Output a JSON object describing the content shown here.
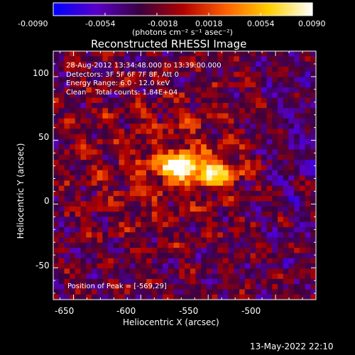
{
  "chart_data": {
    "type": "heatmap",
    "title": "Reconstructed RHESSI Image",
    "xlabel": "Heliocentric X (arcsec)",
    "ylabel": "Heliocentric Y (arcsec)",
    "xlim": [
      -665,
      -470
    ],
    "ylim": [
      -75,
      120
    ],
    "x_ticks": [
      -650,
      -600,
      -550,
      -500
    ],
    "y_ticks": [
      -50,
      0,
      50,
      100
    ],
    "colorbar": {
      "min": -0.009,
      "max": 0.009,
      "ticks": [
        "-0.0090",
        "-0.0054",
        "-0.0018",
        "0.0018",
        "0.0054",
        "0.0090"
      ],
      "label": "(photons cm⁻² s⁻¹ asec⁻²)",
      "colors": [
        "#0000ff",
        "#5a00c8",
        "#3a0040",
        "#b00000",
        "#ff6000",
        "#ffd000",
        "#ffffff"
      ]
    },
    "annotations": [
      "28-Aug-2012 13:34:48.000 to 13:39:00.000",
      "Detectors: 3F 5F 6F 7F 8F, Att 0",
      "Energy Range: 6.0 - 12.0 keV",
      "Clean    Total counts: 1.84E+04"
    ],
    "peak_label": "Position of Peak = [-569,29]",
    "peak": [
      -569,
      29
    ],
    "timestamp": "13-May-2022 22:10"
  }
}
